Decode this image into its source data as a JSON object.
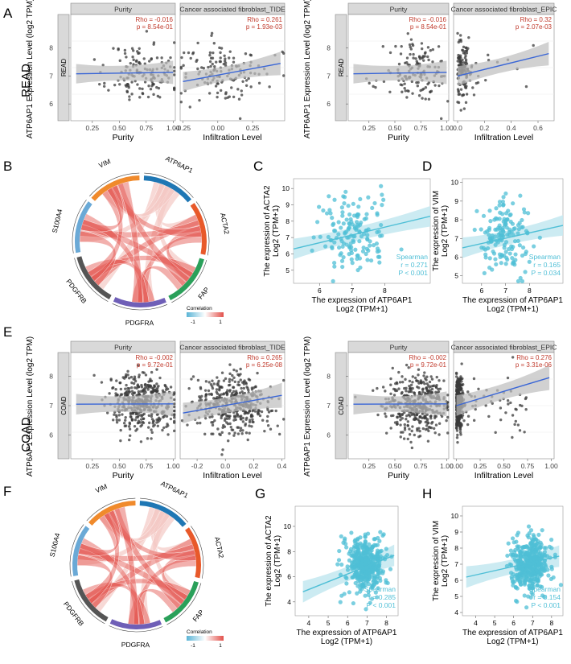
{
  "colors": {
    "strip": "#d9d9d9",
    "stat": "#c0392b",
    "fit": "#3a66d6",
    "band": "#bdbdbd",
    "point": "#3a3a3a",
    "cyan": "#4fbfd6",
    "cyanband": "#c6e9f1",
    "corrLow": "#5ab4d6",
    "corrHigh": "#e2504a"
  },
  "rows": {
    "read": "READ",
    "coad": "COAD"
  },
  "chord_legend": {
    "title": "Correlation",
    "low": "-1",
    "high": "1"
  },
  "chart_data": [
    {
      "type": "scatter",
      "panel": "A",
      "label": "A",
      "ylabel": "ATP6AP1 Expression Level (log2 TPM)",
      "strip_tag": "READ",
      "facets": [
        {
          "title": "Purity",
          "xlabel": "Purity",
          "rho": "Rho = -0.016",
          "p": "p = 8.54e-01",
          "xlim": [
            0.05,
            1.02
          ],
          "ylim": [
            5.4,
            9.2
          ],
          "xticks": [
            "0.25",
            "0.50",
            "0.75",
            "1.00"
          ],
          "xtickvals": [
            0.25,
            0.5,
            0.75,
            1.0
          ],
          "yticks": [
            "6",
            "7",
            "8"
          ],
          "ytickvals": [
            6,
            7,
            8
          ],
          "fit": [
            [
              0.1,
              7.08
            ],
            [
              1.0,
              7.13
            ]
          ],
          "seed": 11,
          "n": 140,
          "xc": 0.72,
          "xs": 0.16,
          "yc": 7.1,
          "ys": 0.55
        },
        {
          "title": "Cancer associated fibroblast_TIDE",
          "xlabel": "Infiltration Level",
          "rho": "Rho = 0.261",
          "p": "p = 1.93e-03",
          "xlim": [
            -0.27,
            0.48
          ],
          "ylim": [
            5.4,
            9.2
          ],
          "xticks": [
            "-0.25",
            "0.00",
            "0.25"
          ],
          "xtickvals": [
            -0.25,
            0,
            0.25
          ],
          "fit": [
            [
              -0.25,
              6.8
            ],
            [
              0.45,
              7.45
            ]
          ],
          "seed": 12,
          "n": 140,
          "xc": 0.05,
          "xs": 0.17,
          "yc": 7.1,
          "ys": 0.55
        }
      ]
    },
    {
      "type": "scatter",
      "panel": "A2",
      "ylabel": "ATP6AP1 Expression Level (log2 TPM)",
      "strip_tag": "READ",
      "facets": [
        {
          "title": "Purity",
          "xlabel": "Purity",
          "rho": "Rho = -0.016",
          "p": "p = 8.54e-01",
          "xlim": [
            0.05,
            1.02
          ],
          "ylim": [
            5.4,
            9.2
          ],
          "xticks": [
            "0.25",
            "0.50",
            "0.75",
            "1.00"
          ],
          "xtickvals": [
            0.25,
            0.5,
            0.75,
            1.0
          ],
          "yticks": [
            "6",
            "7",
            "8"
          ],
          "ytickvals": [
            6,
            7,
            8
          ],
          "fit": [
            [
              0.1,
              7.08
            ],
            [
              1.0,
              7.13
            ]
          ],
          "seed": 21,
          "n": 140,
          "xc": 0.72,
          "xs": 0.16,
          "yc": 7.1,
          "ys": 0.55
        },
        {
          "title": "Cancer associated fibroblast_EPIC",
          "xlabel": "Infiltration Level",
          "rho": "Rho = 0.32",
          "p": "p = 2.07e-03",
          "xlim": [
            -0.03,
            0.72
          ],
          "ylim": [
            5.4,
            9.2
          ],
          "xticks": [
            "0.0",
            "0.2",
            "0.4",
            "0.6"
          ],
          "xtickvals": [
            0,
            0.2,
            0.4,
            0.6
          ],
          "fit": [
            [
              0.0,
              7.0
            ],
            [
              0.68,
              7.8
            ]
          ],
          "seed": 22,
          "n": 140,
          "xc": 0.05,
          "xs": 0.05,
          "yc": 7.1,
          "ys": 0.5,
          "skew": true
        }
      ]
    },
    {
      "type": "chord",
      "panel": "B",
      "label": "B",
      "segments": [
        "ATP6AP1",
        "ACTA2",
        "FAP",
        "PDGFRA",
        "PDGFRB",
        "S100A4",
        "VIM"
      ],
      "segment_colors": [
        "#1f77b4",
        "#e8592a",
        "#2aa05a",
        "#6f5fb7",
        "#555555",
        "#6aa9d6",
        "#f08a2c"
      ]
    },
    {
      "type": "scatter",
      "panel": "C",
      "label": "C",
      "xlabel": "The expression of ATP6AP1",
      "xlabel2": "Log2 (TPM+1)",
      "ylabel": "The expression of ACTA2",
      "ylabel2": "Log2 (TPM+1)",
      "xlim": [
        5.2,
        9.4
      ],
      "ylim": [
        4.2,
        10.6
      ],
      "xticks": [
        "6",
        "7",
        "8"
      ],
      "xtickvals": [
        6,
        7,
        8
      ],
      "yticks": [
        "5",
        "6",
        "7",
        "8",
        "9",
        "10"
      ],
      "ytickvals": [
        5,
        6,
        7,
        8,
        9,
        10
      ],
      "fit": [
        [
          5.2,
          6.3
        ],
        [
          9.4,
          8.3
        ]
      ],
      "stats": [
        "Spearman",
        "r = 0.271",
        "P < 0.001"
      ],
      "seed": 31,
      "n": 150,
      "xc": 7.0,
      "xs": 0.55,
      "yc": 7.2,
      "ys": 1.2
    },
    {
      "type": "scatter",
      "panel": "D",
      "label": "D",
      "xlabel": "The expression of ATP6AP1",
      "xlabel2": "Log2 (TPM+1)",
      "ylabel": "The expression of VIM",
      "ylabel2": "Log2 (TPM+1)",
      "xlim": [
        5.2,
        9.4
      ],
      "ylim": [
        4.6,
        10.2
      ],
      "xticks": [
        "6",
        "7",
        "8"
      ],
      "xtickvals": [
        6,
        7,
        8
      ],
      "yticks": [
        "5",
        "6",
        "7",
        "8",
        "9",
        "10"
      ],
      "ytickvals": [
        5,
        6,
        7,
        8,
        9,
        10
      ],
      "fit": [
        [
          5.2,
          6.5
        ],
        [
          9.4,
          7.7
        ]
      ],
      "stats": [
        "Spearman",
        "r = 0.165",
        "P = 0.034"
      ],
      "seed": 41,
      "n": 150,
      "xc": 7.0,
      "xs": 0.55,
      "yc": 7.1,
      "ys": 0.95
    },
    {
      "type": "scatter",
      "panel": "E",
      "label": "E",
      "ylabel": "ATP6AP1 Expression Level (log2 TPM)",
      "strip_tag": "COAD",
      "facets": [
        {
          "title": "Purity",
          "xlabel": "Purity",
          "rho": "Rho = -0.002",
          "p": "p = 9.72e-01",
          "xlim": [
            0.05,
            1.02
          ],
          "ylim": [
            5.2,
            8.8
          ],
          "xticks": [
            "0.25",
            "0.50",
            "0.75",
            "1.00"
          ],
          "xtickvals": [
            0.25,
            0.5,
            0.75,
            1.0
          ],
          "yticks": [
            "6",
            "7",
            "8"
          ],
          "ytickvals": [
            6,
            7,
            8
          ],
          "fit": [
            [
              0.1,
              7.05
            ],
            [
              1.0,
              7.06
            ]
          ],
          "seed": 51,
          "n": 420,
          "xc": 0.72,
          "xs": 0.15,
          "yc": 7.05,
          "ys": 0.5
        },
        {
          "title": "Cancer associated fibroblast_TIDE",
          "xlabel": "Infiltration Level",
          "rho": "Rho = 0.265",
          "p": "p = 6.25e-08",
          "xlim": [
            -0.32,
            0.42
          ],
          "ylim": [
            5.2,
            8.8
          ],
          "xticks": [
            "-0.2",
            "0.0",
            "0.2",
            "0.4"
          ],
          "xtickvals": [
            -0.2,
            0,
            0.2,
            0.4
          ],
          "fit": [
            [
              -0.3,
              6.75
            ],
            [
              0.4,
              7.35
            ]
          ],
          "seed": 52,
          "n": 420,
          "xc": 0.05,
          "xs": 0.13,
          "yc": 7.05,
          "ys": 0.5
        }
      ]
    },
    {
      "type": "scatter",
      "panel": "E2",
      "ylabel": "ATP6AP1 Expression Level (log2 TPM)",
      "strip_tag": "COAD",
      "facets": [
        {
          "title": "Purity",
          "xlabel": "Purity",
          "rho": "Rho = -0.002",
          "p": "p = 9.72e-01",
          "xlim": [
            0.05,
            1.02
          ],
          "ylim": [
            5.2,
            8.8
          ],
          "xticks": [
            "0.25",
            "0.50",
            "0.75",
            "1.00"
          ],
          "xtickvals": [
            0.25,
            0.5,
            0.75,
            1.0
          ],
          "yticks": [
            "6",
            "7",
            "8"
          ],
          "ytickvals": [
            6,
            7,
            8
          ],
          "fit": [
            [
              0.1,
              7.05
            ],
            [
              1.0,
              7.06
            ]
          ],
          "seed": 61,
          "n": 420,
          "xc": 0.72,
          "xs": 0.15,
          "yc": 7.05,
          "ys": 0.5
        },
        {
          "title": "Cancer associated fibroblast_EPIC",
          "xlabel": "Infiltration Level",
          "rho": "Rho = 0.276",
          "p": "p = 3.31e-06",
          "xlim": [
            -0.03,
            1.03
          ],
          "ylim": [
            5.2,
            8.8
          ],
          "xticks": [
            "0.00",
            "0.25",
            "0.50",
            "0.75",
            "1.00"
          ],
          "xtickvals": [
            0,
            0.25,
            0.5,
            0.75,
            1.0
          ],
          "fit": [
            [
              0.0,
              7.0
            ],
            [
              0.98,
              7.95
            ]
          ],
          "seed": 62,
          "n": 420,
          "xc": 0.03,
          "xs": 0.03,
          "yc": 7.05,
          "ys": 0.45,
          "skew": true
        }
      ]
    },
    {
      "type": "chord",
      "panel": "F",
      "label": "F",
      "segments": [
        "ATP6AP1",
        "ACTA2",
        "FAP",
        "PDGFRA",
        "PDGFRB",
        "S100A4",
        "VIM"
      ],
      "segment_colors": [
        "#1f77b4",
        "#e8592a",
        "#2aa05a",
        "#6f5fb7",
        "#555555",
        "#6aa9d6",
        "#f08a2c"
      ]
    },
    {
      "type": "scatter",
      "panel": "G",
      "label": "G",
      "xlabel": "The expression of ATP6AP1",
      "xlabel2": "Log2 (TPM+1)",
      "ylabel": "The expression of ACTA2",
      "ylabel2": "Log2 (TPM+1)",
      "xlim": [
        3.3,
        8.6
      ],
      "ylim": [
        2.9,
        11.6
      ],
      "xticks": [
        "4",
        "5",
        "6",
        "7",
        "8"
      ],
      "xtickvals": [
        4,
        5,
        6,
        7,
        8
      ],
      "yticks": [
        "4",
        "6",
        "8",
        "10"
      ],
      "ytickvals": [
        4,
        6,
        8,
        10
      ],
      "fit": [
        [
          3.7,
          4.8
        ],
        [
          8.4,
          7.7
        ]
      ],
      "stats": [
        "Spearman",
        "r = 0.285",
        "P < 0.001"
      ],
      "seed": 71,
      "n": 420,
      "xc": 6.9,
      "xs": 0.5,
      "yc": 6.9,
      "ys": 1.1
    },
    {
      "type": "scatter",
      "panel": "H",
      "label": "H",
      "xlabel": "The expression of ATP6AP1",
      "xlabel2": "Log2 (TPM+1)",
      "ylabel": "The expression of VIM",
      "ylabel2": "Log2 (TPM+1)",
      "xlim": [
        3.3,
        8.6
      ],
      "ylim": [
        3.8,
        10.6
      ],
      "xticks": [
        "4",
        "5",
        "6",
        "7",
        "8"
      ],
      "xtickvals": [
        4,
        5,
        6,
        7,
        8
      ],
      "yticks": [
        "4",
        "5",
        "6",
        "7",
        "8",
        "9",
        "10"
      ],
      "ytickvals": [
        4,
        5,
        6,
        7,
        8,
        9,
        10
      ],
      "fit": [
        [
          3.5,
          6.2
        ],
        [
          8.4,
          7.5
        ]
      ],
      "stats": [
        "Spearman",
        "r = 0.154",
        "P < 0.001"
      ],
      "seed": 81,
      "n": 420,
      "xc": 6.9,
      "xs": 0.5,
      "yc": 7.1,
      "ys": 0.85
    }
  ]
}
